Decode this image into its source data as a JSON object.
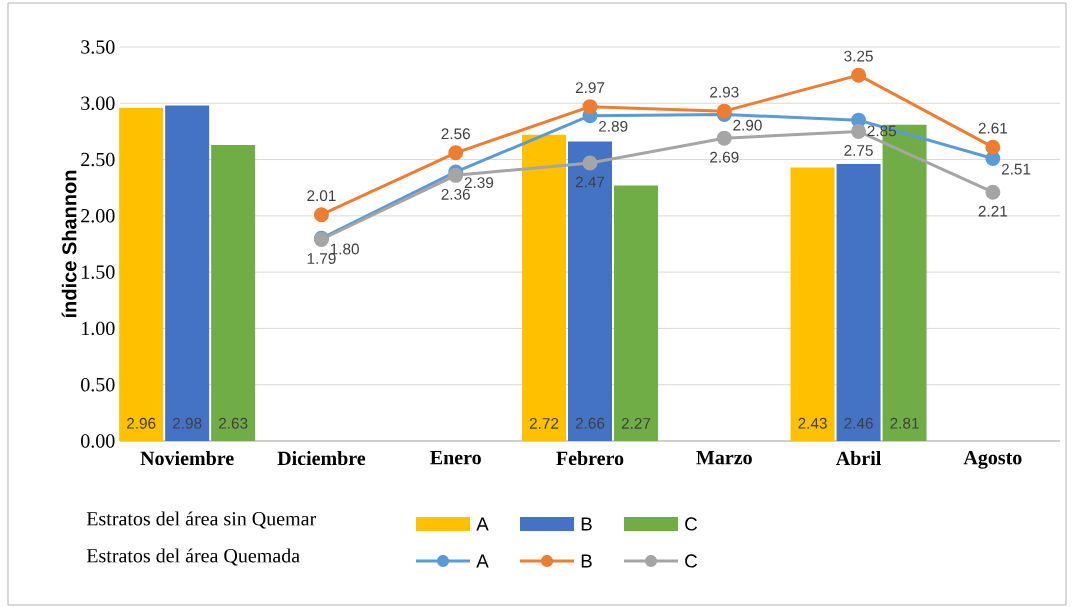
{
  "chart_data": {
    "type": "bar",
    "ylabel": "índice  Shannon",
    "categories": [
      "Noviembre",
      "Diciembre",
      "Enero",
      "Febrero",
      "Marzo",
      "Abril",
      "Agosto"
    ],
    "series": [
      {
        "name": "A",
        "color": "#ffc000",
        "values": [
          2.96,
          null,
          null,
          2.72,
          null,
          2.43,
          null
        ],
        "value_labels": [
          "2.96",
          null,
          null,
          "2.72",
          null,
          "2.43",
          null
        ]
      },
      {
        "name": "B",
        "color": "#4472c4",
        "values": [
          2.98,
          null,
          null,
          2.66,
          null,
          2.46,
          null
        ],
        "value_labels": [
          "2.98",
          null,
          null,
          "2.66",
          null,
          "2.46",
          null
        ]
      },
      {
        "name": "C",
        "color": "#70ad47",
        "values": [
          2.63,
          null,
          null,
          2.27,
          null,
          2.81,
          null
        ],
        "value_labels": [
          "2.63",
          null,
          null,
          "2.27",
          null,
          "2.81",
          null
        ]
      },
      {
        "name": "A",
        "type": "line",
        "color": "#5b9bd5",
        "values": [
          null,
          1.8,
          2.39,
          2.89,
          2.9,
          2.85,
          2.51
        ],
        "value_labels": [
          null,
          "1.80",
          "2.39",
          "2.89",
          "2.90",
          "2.85",
          "2.51"
        ]
      },
      {
        "name": "B",
        "type": "line",
        "color": "#ed7d31",
        "values": [
          null,
          2.01,
          2.56,
          2.97,
          2.93,
          3.25,
          2.61
        ],
        "value_labels": [
          null,
          "2.01",
          "2.56",
          "2.97",
          "2.93",
          "3.25",
          "2.61"
        ]
      },
      {
        "name": "C",
        "type": "line",
        "color": "#a5a5a5",
        "values": [
          null,
          1.79,
          2.36,
          2.47,
          2.69,
          2.75,
          2.21
        ],
        "value_labels": [
          null,
          "1.79",
          "2.36",
          "2.47",
          "2.69",
          "2.75",
          "2.21"
        ]
      }
    ],
    "ylim": [
      0,
      3.5
    ],
    "yticks": [
      {
        "value": 0,
        "label": "0.00"
      },
      {
        "value": 0.5,
        "label": "0.50"
      },
      {
        "value": 1,
        "label": "1.00"
      },
      {
        "value": 1.5,
        "label": "1.50"
      },
      {
        "value": 2,
        "label": "2.00"
      },
      {
        "value": 2.5,
        "label": "2.50"
      },
      {
        "value": 3,
        "label": "3.00"
      },
      {
        "value": 3.5,
        "label": "3.50"
      }
    ],
    "grid": "y",
    "legend": "bottom",
    "marker": "circle",
    "annotations": [
      "Estratos del área  sin Quemar",
      "Estratos del área  Quemada"
    ]
  }
}
